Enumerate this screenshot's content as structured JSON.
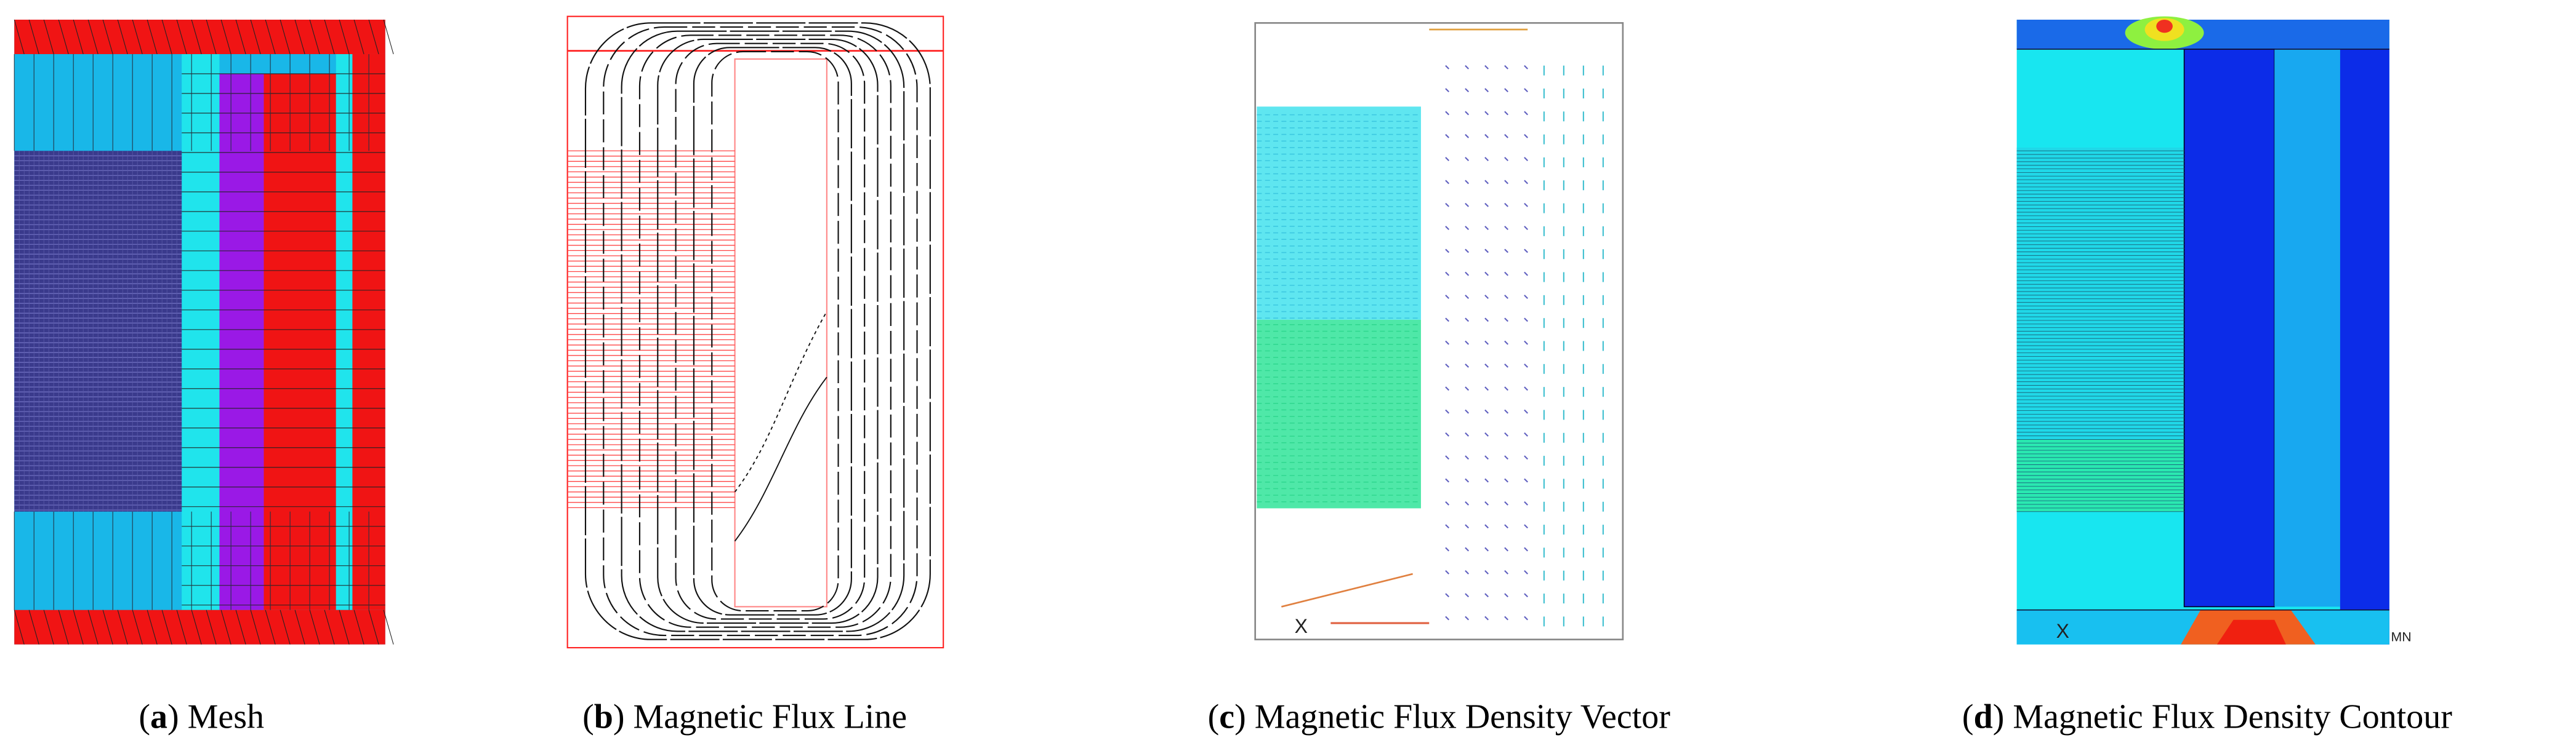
{
  "panels": [
    {
      "open": "(",
      "letter": "a",
      "rest": ") Mesh"
    },
    {
      "open": "(",
      "letter": "b",
      "rest": ") Magnetic Flux Line"
    },
    {
      "open": "(",
      "letter": "c",
      "rest": ") Magnetic Flux Density Vector"
    },
    {
      "open": "(",
      "letter": "d",
      "rest": ") Magnetic Flux Density Contour"
    }
  ],
  "labels": {
    "vector_axis": "X",
    "contour_axis": "X",
    "contour_min": "MN"
  }
}
